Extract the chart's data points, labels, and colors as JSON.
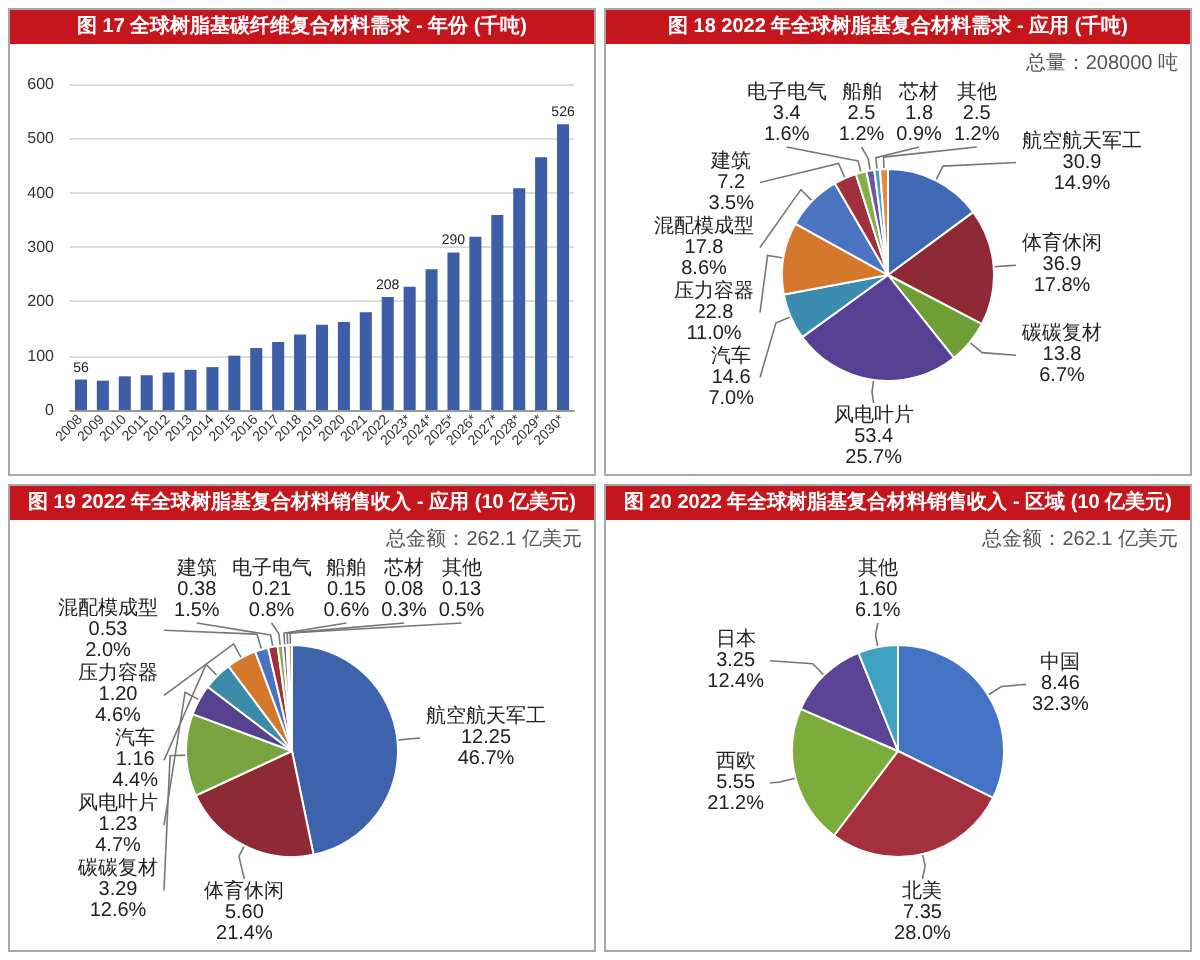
{
  "chart_data": [
    {
      "type": "bar",
      "title": "图 17 全球树脂基碳纤维复合材料需求 - 年份 (千吨)",
      "categories": [
        "2008",
        "2009",
        "2010",
        "2011",
        "2012",
        "2013",
        "2014",
        "2015",
        "2016",
        "2017",
        "2018",
        "2019",
        "2020",
        "2021",
        "2022",
        "2023*",
        "2024*",
        "2025*",
        "2026*",
        "2027*",
        "2028*",
        "2029*",
        "2030*"
      ],
      "values": [
        56,
        54,
        62,
        64,
        69,
        74,
        79,
        100,
        114,
        125,
        139,
        157,
        162,
        180,
        208,
        227,
        259,
        290,
        319,
        359,
        408,
        465,
        526
      ],
      "value_labels": [
        "56",
        null,
        null,
        null,
        null,
        null,
        null,
        null,
        null,
        null,
        null,
        null,
        null,
        null,
        "208",
        null,
        null,
        "290",
        null,
        null,
        null,
        null,
        "526"
      ],
      "color": "#3c5ea6",
      "ylim": [
        0,
        600
      ],
      "yticks": [
        0,
        100,
        200,
        300,
        400,
        500,
        600
      ],
      "grid": "y"
    },
    {
      "type": "pie",
      "title": "图 18 2022 年全球树脂基复合材料需求 - 应用 (千吨)",
      "categories": [
        "航空航天军工",
        "体育休闲",
        "碳碳复材",
        "风电叶片",
        "汽车",
        "压力容器",
        "混配模成型",
        "建筑",
        "电子电气",
        "船舶",
        "芯材",
        "其他"
      ],
      "values": [
        30.9,
        36.9,
        13.8,
        53.4,
        14.6,
        22.8,
        17.8,
        7.2,
        3.4,
        2.5,
        1.8,
        2.5
      ],
      "value_labels": [
        "30.9\n14.9%",
        "36.9\n17.8%",
        "13.8\n6.7%",
        "53.4\n25.7%",
        "14.6\n7.0%",
        "22.8\n11.0%",
        "17.8\n8.6%",
        "7.2\n3.5%",
        "3.4\n1.6%",
        "2.5\n1.2%",
        "1.8\n0.9%",
        "2.5\n1.2%"
      ],
      "colors": [
        "#3f68b5",
        "#8e2a35",
        "#6f9e35",
        "#573f94",
        "#3a8cb0",
        "#d4782b",
        "#4a74c0",
        "#a0303a",
        "#84b04a",
        "#6a54a3",
        "#4aa0c2",
        "#e08e3e"
      ],
      "annotations": [
        "总量：208000 吨"
      ]
    },
    {
      "type": "pie",
      "title": "图 19 2022 年全球树脂基复合材料销售收入 - 应用 (10 亿美元)",
      "categories": [
        "航空航天军工",
        "体育休闲",
        "碳碳复材",
        "风电叶片",
        "汽车",
        "压力容器",
        "混配模成型",
        "建筑",
        "电子电气",
        "船舶",
        "芯材",
        "其他"
      ],
      "values": [
        12.25,
        5.6,
        3.29,
        1.23,
        1.16,
        1.2,
        0.53,
        0.38,
        0.21,
        0.15,
        0.08,
        0.13
      ],
      "value_labels": [
        "12.25\n46.7%",
        "5.60\n21.4%",
        "3.29\n12.6%",
        "1.23\n4.7%",
        "1.16\n4.4%",
        "1.20\n4.6%",
        "0.53\n2.0%",
        "0.38\n1.5%",
        "0.21\n0.8%",
        "0.15\n0.6%",
        "0.08\n0.3%",
        "0.13\n0.5%"
      ],
      "colors": [
        "#3d63ad",
        "#8e2a35",
        "#78a540",
        "#55428f",
        "#3a8aa8",
        "#d4782b",
        "#4a74c0",
        "#a0303a",
        "#84b04a",
        "#6a54a3",
        "#4aa0c2",
        "#e08e3e"
      ],
      "annotations": [
        "总金额：262.1 亿美元"
      ]
    },
    {
      "type": "pie",
      "title": "图 20 2022 年全球树脂基复合材料销售收入 - 区域 (10 亿美元)",
      "categories": [
        "中国",
        "北美",
        "西欧",
        "日本",
        "其他"
      ],
      "values": [
        8.46,
        7.35,
        5.55,
        3.25,
        1.6
      ],
      "value_labels": [
        "8.46\n32.3%",
        "7.35\n28.0%",
        "5.55\n21.2%",
        "3.25\n12.4%",
        "1.60\n6.1%"
      ],
      "colors": [
        "#4472c4",
        "#a3303c",
        "#7cad3c",
        "#5c4494",
        "#3ea3c2"
      ],
      "annotations": [
        "总金额：262.1 亿美元"
      ]
    }
  ]
}
